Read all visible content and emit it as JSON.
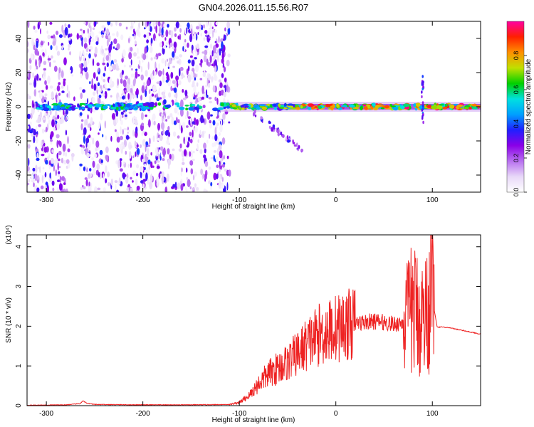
{
  "title": "GN04.2026.011.15.56.R07",
  "chart_data": [
    {
      "type": "heatmap",
      "xlabel": "Height of straight line (km)",
      "ylabel": "Frequency (Hz)",
      "xlim": [
        -320,
        150
      ],
      "ylim": [
        -50,
        50
      ],
      "xticks": [
        -300,
        -200,
        -100,
        0,
        100
      ],
      "yticks": [
        -40,
        -20,
        0,
        20,
        40
      ],
      "colorbar": {
        "label": "Normalized spectral amplitude",
        "range": [
          0,
          1
        ],
        "ticks": [
          "0.0",
          "0.2",
          "0.4",
          "0.6",
          "0.8"
        ],
        "tick_values": [
          0,
          0.2,
          0.4,
          0.6,
          0.8
        ],
        "colors": [
          "#ffffff",
          "#e8d8f8",
          "#b870f0",
          "#8a00e8",
          "#2020ff",
          "#00a0ff",
          "#00e0e0",
          "#00d000",
          "#c0e000",
          "#ff9000",
          "#ff2000",
          "#ff00a0"
        ]
      },
      "features": {
        "noise_region_x": [
          -320,
          -110
        ],
        "noise_gap_x": [
          -275,
          -265
        ],
        "signal_line_freq": 0,
        "spike_x": 90,
        "spike_freq_range": [
          -10,
          18
        ]
      }
    },
    {
      "type": "line",
      "xlabel": "Height of straight line (km)",
      "ylabel": "SNR (10 * v/v)",
      "multiplier": "(x10⁴)",
      "xlim": [
        -320,
        150
      ],
      "ylim": [
        0,
        4.3
      ],
      "xticks": [
        -300,
        -200,
        -100,
        0,
        100
      ],
      "yticks": [
        0,
        1,
        2,
        3,
        4
      ],
      "color": "#ee2222",
      "series": [
        {
          "x": [
            -320,
            -280,
            -265,
            -262,
            -258,
            -250,
            -200,
            -150,
            -110,
            -100,
            -90,
            -80,
            -70,
            -60,
            -50,
            -40,
            -30,
            -20,
            -10,
            0,
            10,
            20,
            30,
            40,
            50,
            60,
            70,
            75,
            80,
            85,
            90,
            95,
            100,
            105,
            110,
            120,
            130,
            140,
            150
          ],
          "values": [
            0.01,
            0.02,
            0.05,
            0.12,
            0.06,
            0.03,
            0.02,
            0.02,
            0.03,
            0.08,
            0.25,
            0.55,
            0.8,
            0.95,
            1.1,
            1.3,
            1.55,
            1.75,
            1.85,
            1.95,
            2.02,
            2.08,
            2.1,
            2.12,
            2.1,
            2.05,
            2.1,
            2.2,
            2.5,
            2.3,
            2.2,
            2.4,
            2.7,
            1.97,
            1.98,
            1.95,
            1.9,
            1.85,
            1.8
          ]
        }
      ]
    }
  ]
}
